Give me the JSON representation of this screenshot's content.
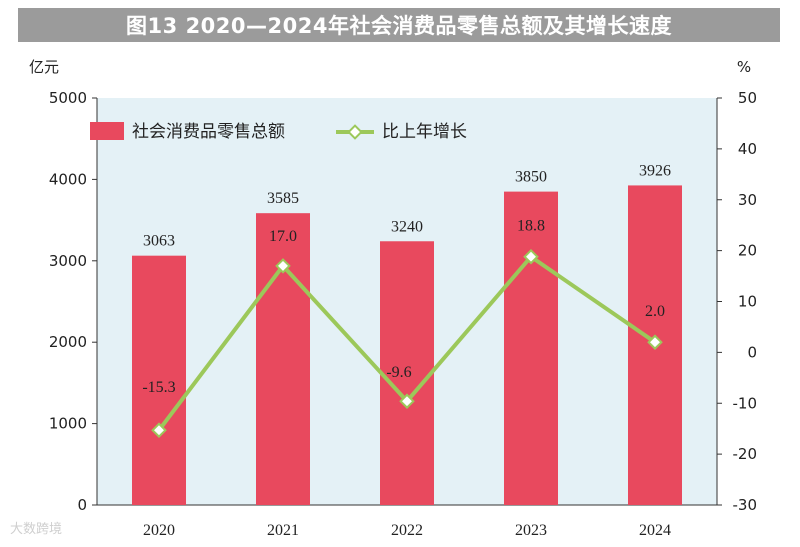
{
  "title": "图13 2020—2024年社会消费品零售总额及其增长速度",
  "watermark": "大数跨境",
  "colors": {
    "bar": "#e8495e",
    "line": "#9cc85a",
    "marker_fill": "#ffffff",
    "plot_background": "#e4f1f6",
    "title_background": "#9b9b9b"
  },
  "chart_data": {
    "type": "bar",
    "title": "图13 2020—2024年社会消费品零售总额及其增长速度",
    "categories": [
      "2020",
      "2021",
      "2022",
      "2023",
      "2024"
    ],
    "series": [
      {
        "name": "社会消费品零售总额",
        "type": "bar",
        "axis": "left",
        "values": [
          3063,
          3585,
          3240,
          3850,
          3926
        ]
      },
      {
        "name": "比上年增长",
        "type": "line",
        "axis": "right",
        "values": [
          -15.3,
          17.0,
          -9.6,
          18.8,
          2.0
        ]
      }
    ],
    "bar_labels": [
      "3063",
      "3585",
      "3240",
      "3850",
      "3926"
    ],
    "line_labels": [
      "-15.3",
      "17.0",
      "-9.6",
      "18.8",
      "2.0"
    ],
    "left_axis": {
      "unit": "亿元",
      "ylim": [
        0,
        5000
      ],
      "ticks": [
        "0",
        "1000",
        "2000",
        "3000",
        "4000",
        "5000"
      ]
    },
    "right_axis": {
      "unit": "%",
      "ylim": [
        -30,
        50
      ],
      "ticks": [
        "-30",
        "-20",
        "-10",
        "0",
        "10",
        "20",
        "30",
        "40",
        "50"
      ]
    },
    "grid": false,
    "legend_position": "top-left"
  }
}
